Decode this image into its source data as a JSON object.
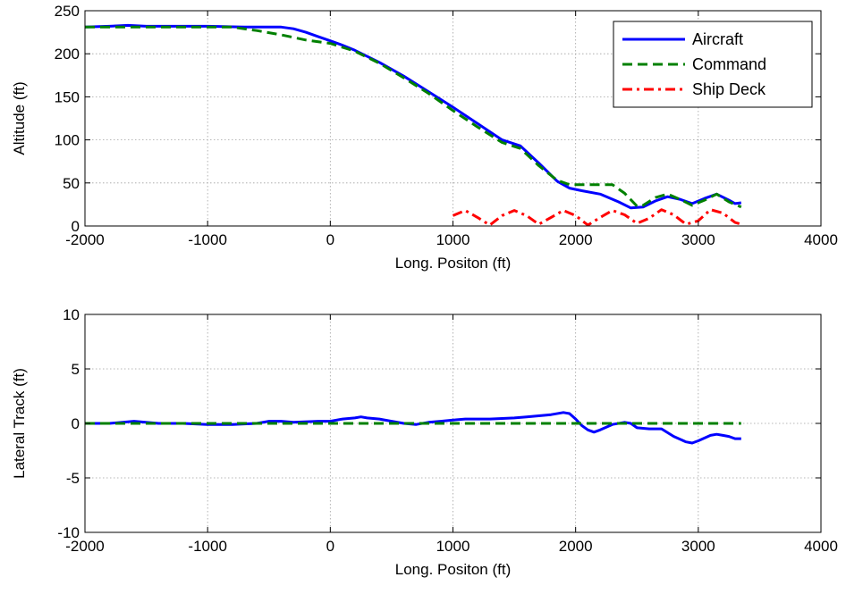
{
  "chart_data": [
    {
      "type": "line",
      "xlabel": "Long. Positon (ft)",
      "ylabel": "Altitude (ft)",
      "xlim": [
        -2000,
        4000
      ],
      "ylim": [
        0,
        250
      ],
      "xticks": [
        -2000,
        -1000,
        0,
        1000,
        2000,
        3000,
        4000
      ],
      "yticks": [
        0,
        50,
        100,
        150,
        200,
        250
      ],
      "grid": true,
      "legend": "top-right",
      "series": [
        {
          "name": "Aircraft",
          "color": "#0000ff",
          "style": "solid",
          "x": [
            -2000,
            -1800,
            -1650,
            -1500,
            -1200,
            -1000,
            -700,
            -500,
            -400,
            -300,
            -200,
            -100,
            0,
            100,
            200,
            400,
            600,
            800,
            1000,
            1200,
            1400,
            1550,
            1700,
            1850,
            1950,
            2050,
            2200,
            2350,
            2450,
            2550,
            2650,
            2750,
            2850,
            2950,
            3050,
            3150,
            3250,
            3300,
            3350
          ],
          "y": [
            231,
            232,
            233,
            232,
            232,
            232,
            231,
            231,
            231,
            229,
            225,
            220,
            215,
            210,
            204,
            190,
            174,
            156,
            138,
            119,
            100,
            93,
            73,
            52,
            44,
            41,
            37,
            28,
            21,
            22,
            29,
            34,
            31,
            26,
            32,
            37,
            30,
            26,
            27
          ]
        },
        {
          "name": "Command",
          "color": "#008000",
          "style": "dashed",
          "x": [
            -2000,
            -1500,
            -1000,
            -800,
            -600,
            -400,
            -200,
            0,
            200,
            400,
            600,
            800,
            1000,
            1200,
            1400,
            1550,
            1700,
            1850,
            1950,
            2300,
            2400,
            2500,
            2550,
            2650,
            2750,
            2850,
            2950,
            3050,
            3150,
            3250,
            3350
          ],
          "y": [
            231,
            231,
            231,
            231,
            227,
            222,
            216,
            212,
            203,
            189,
            172,
            154,
            134,
            115,
            97,
            90,
            70,
            53,
            48,
            48,
            38,
            23,
            24,
            33,
            37,
            31,
            24,
            30,
            37,
            28,
            22
          ]
        },
        {
          "name": "Ship Deck",
          "color": "#ff0000",
          "style": "dashdot",
          "x": [
            1000,
            1100,
            1200,
            1300,
            1400,
            1500,
            1600,
            1700,
            1800,
            1900,
            2000,
            2100,
            2200,
            2300,
            2400,
            2500,
            2600,
            2700,
            2800,
            2900,
            3000,
            3100,
            3200,
            3300,
            3350
          ],
          "y": [
            12,
            18,
            10,
            1,
            12,
            18,
            12,
            2,
            10,
            18,
            12,
            1,
            10,
            18,
            13,
            3,
            9,
            19,
            13,
            2,
            6,
            19,
            15,
            4,
            2
          ]
        }
      ]
    },
    {
      "type": "line",
      "xlabel": "Long. Positon (ft)",
      "ylabel": "Lateral Track (ft)",
      "xlim": [
        -2000,
        4000
      ],
      "ylim": [
        -10,
        10
      ],
      "xticks": [
        -2000,
        -1000,
        0,
        1000,
        2000,
        3000,
        4000
      ],
      "yticks": [
        -10,
        -5,
        0,
        5,
        10
      ],
      "grid": true,
      "series": [
        {
          "color": "#0000ff",
          "style": "solid",
          "x": [
            -2000,
            -1800,
            -1600,
            -1400,
            -1200,
            -1000,
            -800,
            -600,
            -500,
            -400,
            -300,
            -100,
            0,
            100,
            200,
            250,
            300,
            400,
            500,
            600,
            700,
            800,
            900,
            1000,
            1100,
            1300,
            1500,
            1600,
            1700,
            1800,
            1900,
            1950,
            2000,
            2050,
            2100,
            2150,
            2200,
            2300,
            2400,
            2450,
            2500,
            2600,
            2700,
            2800,
            2900,
            2950,
            3000,
            3100,
            3150,
            3200,
            3250,
            3300,
            3350
          ],
          "y": [
            0,
            0,
            0.2,
            0,
            0,
            -0.1,
            -0.1,
            0,
            0.2,
            0.2,
            0.1,
            0.2,
            0.2,
            0.4,
            0.5,
            0.6,
            0.5,
            0.4,
            0.2,
            0,
            -0.1,
            0.1,
            0.2,
            0.3,
            0.4,
            0.4,
            0.5,
            0.6,
            0.7,
            0.8,
            1.0,
            0.9,
            0.4,
            -0.2,
            -0.6,
            -0.8,
            -0.6,
            -0.1,
            0.1,
            0,
            -0.4,
            -0.5,
            -0.5,
            -1.2,
            -1.7,
            -1.8,
            -1.6,
            -1.1,
            -1.0,
            -1.1,
            -1.2,
            -1.4,
            -1.4
          ]
        },
        {
          "color": "#008000",
          "style": "dashed",
          "x": [
            -2000,
            3350
          ],
          "y": [
            0,
            0
          ]
        }
      ]
    }
  ]
}
